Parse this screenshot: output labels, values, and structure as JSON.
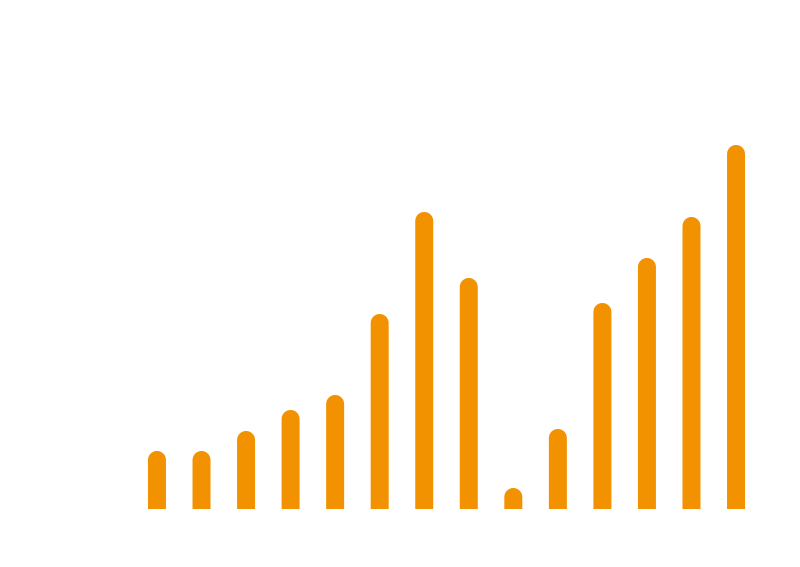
{
  "chart_data": {
    "type": "bar",
    "categories": [
      null,
      null,
      null,
      null,
      null,
      null,
      null,
      null,
      null,
      null,
      null,
      null,
      null,
      null
    ],
    "values": [
      58,
      58,
      78,
      99,
      114,
      195,
      297,
      231,
      21,
      80,
      206,
      251,
      292,
      364
    ],
    "color": "#f39200",
    "ylim": [
      0,
      400
    ]
  }
}
